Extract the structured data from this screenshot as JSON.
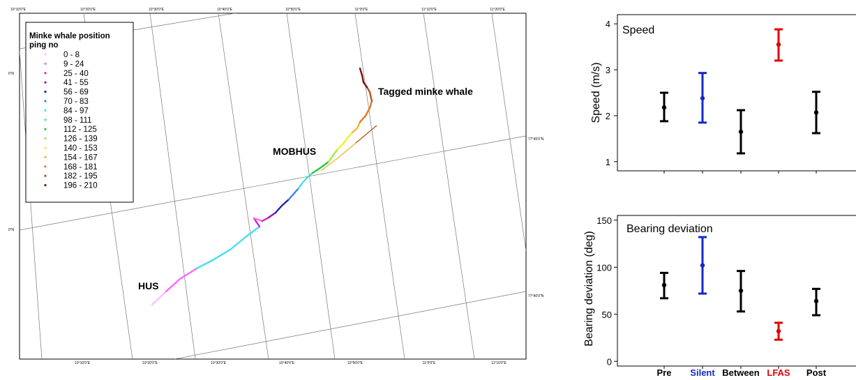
{
  "map": {
    "top_labels": [
      "10°10'0\"E",
      "10°20'0\"E",
      "10°30'0\"E",
      "10°40'0\"E",
      "10°50'0\"E",
      "11°0'0\"E",
      "11°10'0\"E",
      "11°20'0\"E"
    ],
    "bottom_labels": [
      "10°10'0\"E",
      "10°20'0\"E",
      "10°30'0\"E",
      "10°40'0\"E",
      "10°50'0\"E",
      "11°0'0\"E",
      "11°10'0\"E"
    ],
    "left_labels": [
      "0\"N",
      "0\"N"
    ],
    "right_labels": [
      "77°45'0\"N",
      "77°40'0\"N"
    ],
    "labels": {
      "tagged": "Tagged minke whale",
      "mobhus": "MOBHUS",
      "hus": "HUS"
    },
    "legend": {
      "title_line1": "Minke whale position",
      "title_line2": "ping no",
      "items": [
        {
          "label": "0 - 8",
          "color": "#ffbfff"
        },
        {
          "label": "9 - 24",
          "color": "#ff66ff"
        },
        {
          "label": "25 - 40",
          "color": "#e21ec7"
        },
        {
          "label": "41 - 55",
          "color": "#9a0dbf"
        },
        {
          "label": "56 - 69",
          "color": "#1b1fa6"
        },
        {
          "label": "70 - 83",
          "color": "#3d7fe0"
        },
        {
          "label": "84 - 97",
          "color": "#44e0f0"
        },
        {
          "label": "98 - 111",
          "color": "#35e8b0"
        },
        {
          "label": "112 - 125",
          "color": "#22c84a"
        },
        {
          "label": "126 - 139",
          "color": "#9ef03a"
        },
        {
          "label": "140 - 153",
          "color": "#f3f032"
        },
        {
          "label": "154 - 167",
          "color": "#f5b52a"
        },
        {
          "label": "168 - 181",
          "color": "#e8781a"
        },
        {
          "label": "182 - 195",
          "color": "#b5521e"
        },
        {
          "label": "196 - 210",
          "color": "#7a1111"
        }
      ]
    }
  },
  "chart_data": [
    {
      "type": "scatter",
      "title": "Speed",
      "ylabel": "Speed (m/s)",
      "ylim": [
        0.8,
        4.2
      ],
      "yticks": [
        1,
        2,
        3,
        4
      ],
      "categories": [
        "Pre",
        "Silent",
        "Between",
        "LFAS",
        "Post"
      ],
      "series": [
        {
          "values": [
            2.18,
            2.38,
            1.65,
            3.55,
            2.07
          ],
          "lower": [
            1.88,
            1.85,
            1.18,
            3.2,
            1.62
          ],
          "upper": [
            2.5,
            2.93,
            2.12,
            3.88,
            2.52
          ]
        }
      ]
    },
    {
      "type": "scatter",
      "title": "Bearing deviation",
      "ylabel": "Bearing deviation (deg)",
      "ylim": [
        -5,
        155
      ],
      "yticks": [
        0,
        50,
        100,
        150
      ],
      "categories": [
        "Pre",
        "Silent",
        "Between",
        "LFAS",
        "Post"
      ],
      "series": [
        {
          "values": [
            81,
            102,
            75,
            32,
            64
          ],
          "lower": [
            67,
            72,
            53,
            23,
            49
          ],
          "upper": [
            94,
            132,
            96,
            41,
            77
          ]
        }
      ]
    }
  ],
  "category_colors": [
    "#000000",
    "#1428c8",
    "#000000",
    "#e00000",
    "#000000"
  ]
}
